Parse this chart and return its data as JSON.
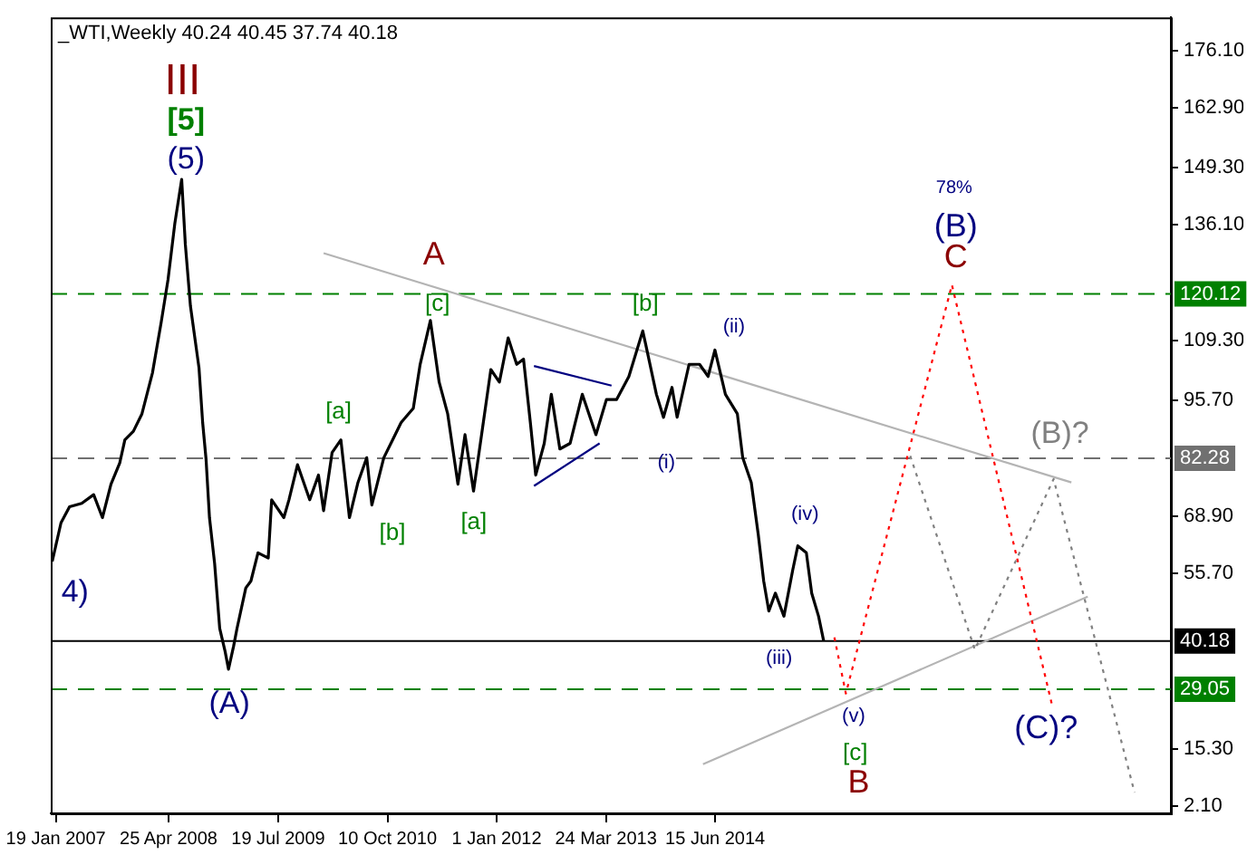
{
  "chart_data": {
    "type": "line",
    "title": "_WTI,Weekly 40.24 40.45 37.74 40.18",
    "marker": "none",
    "xlim": [
      "2006-12-29",
      "2019-07-28"
    ],
    "xticks": [
      {
        "value": "2007-01-19",
        "label": "19 Jan 2007"
      },
      {
        "value": "2008-04-25",
        "label": "25 Apr 2008"
      },
      {
        "value": "2009-07-19",
        "label": "19 Jul 2009"
      },
      {
        "value": "2010-10-10",
        "label": "10 Oct 2010"
      },
      {
        "value": "2012-01-01",
        "label": "1 Jan 2012"
      },
      {
        "value": "2013-03-24",
        "label": "24 Mar 2013"
      },
      {
        "value": "2014-06-15",
        "label": "15 Jun 2014"
      }
    ],
    "ylim": [
      0.5,
      183.8
    ],
    "yticks": [
      {
        "value": 2.1,
        "label": "2.10"
      },
      {
        "value": 15.3,
        "label": "15.30"
      },
      {
        "value": 55.7,
        "label": "55.70"
      },
      {
        "value": 68.9,
        "label": "68.90"
      },
      {
        "value": 95.7,
        "label": "95.70"
      },
      {
        "value": 109.3,
        "label": "109.30"
      },
      {
        "value": 136.1,
        "label": "136.10"
      },
      {
        "value": 149.3,
        "label": "149.30"
      },
      {
        "value": 162.9,
        "label": "162.90"
      },
      {
        "value": 176.1,
        "label": "176.10"
      }
    ],
    "series": [
      {
        "color": "#000000",
        "line_style": "solid",
        "x": [
          "2007-01-04",
          "2007-02-09",
          "2007-03-16",
          "2007-05-05",
          "2007-06-23",
          "2007-07-29",
          "2007-09-02",
          "2007-10-08",
          "2007-10-29",
          "2007-12-03",
          "2008-01-07",
          "2008-02-19",
          "2008-03-26",
          "2008-04-23",
          "2008-05-21",
          "2008-06-18",
          "2008-07-03",
          "2008-07-24",
          "2008-08-28",
          "2008-09-12",
          "2008-09-26",
          "2008-10-10",
          "2008-10-31",
          "2008-11-21",
          "2008-12-13",
          "2008-12-27",
          "2009-01-17",
          "2009-01-31",
          "2009-03-08",
          "2009-03-29",
          "2009-04-27",
          "2009-06-08",
          "2009-06-22",
          "2009-08-11",
          "2009-09-01",
          "2009-10-06",
          "2009-11-25",
          "2009-12-31",
          "2010-01-21",
          "2010-02-25",
          "2010-04-02",
          "2010-05-07",
          "2010-06-11",
          "2010-07-17",
          "2010-08-07",
          "2010-09-25",
          "2010-10-31",
          "2010-12-05",
          "2011-01-24",
          "2011-02-21",
          "2011-04-04",
          "2011-05-10",
          "2011-06-14",
          "2011-07-26",
          "2011-08-24",
          "2011-09-28",
          "2011-11-03",
          "2011-12-08",
          "2012-01-12",
          "2012-02-17",
          "2012-03-23",
          "2012-04-20",
          "2012-05-18",
          "2012-06-09",
          "2012-07-14",
          "2012-08-12",
          "2012-09-16",
          "2012-10-28",
          "2012-12-17",
          "2013-02-11",
          "2013-03-26",
          "2013-05-07",
          "2013-06-26",
          "2013-08-22",
          "2013-09-05",
          "2013-10-17",
          "2013-11-15",
          "2013-12-20",
          "2014-01-10",
          "2014-02-28",
          "2014-04-12",
          "2014-05-17",
          "2014-06-14",
          "2014-07-27",
          "2014-09-14",
          "2014-10-06",
          "2014-11-10",
          "2014-12-09",
          "2014-12-31",
          "2015-01-21",
          "2015-02-17",
          "2015-03-24",
          "2015-04-29",
          "2015-05-20",
          "2015-06-24",
          "2015-07-16",
          "2015-08-13",
          "2015-09-03"
        ],
        "values": [
          58.5,
          67.4,
          71.1,
          71.9,
          73.9,
          68.6,
          76.3,
          81.2,
          86.5,
          88.5,
          92.5,
          101.9,
          113.6,
          123.4,
          136.4,
          146.5,
          131.5,
          117.3,
          103.1,
          90.5,
          82.0,
          68.6,
          58.1,
          43.1,
          37.8,
          33.7,
          39.0,
          43.1,
          52.4,
          54.0,
          60.5,
          59.3,
          72.7,
          68.6,
          72.7,
          80.8,
          72.7,
          78.4,
          70.2,
          83.6,
          86.5,
          68.6,
          76.7,
          82.4,
          71.5,
          82.4,
          86.5,
          90.5,
          93.8,
          103.9,
          114.0,
          99.8,
          92.5,
          76.3,
          87.7,
          74.7,
          88.9,
          102.7,
          99.8,
          110.0,
          103.9,
          105.1,
          90.5,
          78.4,
          85.7,
          97.0,
          84.4,
          85.7,
          97.0,
          87.7,
          95.8,
          95.8,
          101.1,
          111.6,
          108.0,
          97.0,
          91.7,
          98.6,
          91.7,
          103.9,
          103.9,
          101.1,
          107.2,
          97.0,
          92.5,
          82.4,
          76.7,
          64.6,
          54.0,
          47.1,
          51.2,
          45.9,
          56.5,
          62.1,
          60.5,
          51.2,
          45.9,
          40.2
        ]
      },
      {
        "color": "#ff0000",
        "line_style": "dotted",
        "x": [
          "2015-10-17",
          "2015-12-03",
          "2017-02-10",
          "2018-03-27"
        ],
        "values": [
          41.0,
          28.1,
          122.2,
          25.6
        ]
      },
      {
        "color": "#808080",
        "line_style": "dotted",
        "x": [
          "2016-08-23",
          "2017-05-15",
          "2018-04-03",
          "2019-03-01"
        ],
        "values": [
          82.8,
          38.2,
          77.5,
          5.3
        ]
      },
      {
        "color": "#b4b4b4",
        "line_style": "solid",
        "x": [
          "2010-01-21",
          "2018-06-15"
        ],
        "values": [
          129.5,
          76.7
        ]
      },
      {
        "color": "#b4b4b4",
        "line_style": "solid",
        "x": [
          "2014-04-26",
          "2018-08-21"
        ],
        "values": [
          11.8,
          50.4
        ]
      },
      {
        "color": "#000080",
        "line_style": "solid",
        "x": [
          "2012-06-02",
          "2013-04-16"
        ],
        "values": [
          103.5,
          99.0
        ]
      },
      {
        "color": "#000080",
        "line_style": "solid",
        "x": [
          "2012-06-02",
          "2013-02-26"
        ],
        "values": [
          75.9,
          85.7
        ]
      }
    ],
    "ref_lines": [
      {
        "axis": "y",
        "value": 120.12,
        "label": "120.12",
        "color": "#008000",
        "line_style": "dashed"
      },
      {
        "axis": "y",
        "value": 82.28,
        "label": "82.28",
        "color": "#707070",
        "line_style": "dashed"
      },
      {
        "axis": "y",
        "value": 40.18,
        "label": "40.18",
        "color": "#000000",
        "line_style": "solid"
      },
      {
        "axis": "y",
        "value": 29.05,
        "label": "29.05",
        "color": "#008000",
        "line_style": "dashed"
      }
    ],
    "annotations": [
      "III",
      "[5]",
      "(5)",
      "4)",
      "(A)",
      "[a]",
      "[b]",
      "A",
      "[c]",
      "[a]",
      "[b]",
      "(i)",
      "(ii)",
      "(iv)",
      "(iii)",
      "(v)",
      "[c]",
      "B",
      "78%",
      "(B)",
      "C",
      "(B)?",
      "(C)?"
    ]
  }
}
